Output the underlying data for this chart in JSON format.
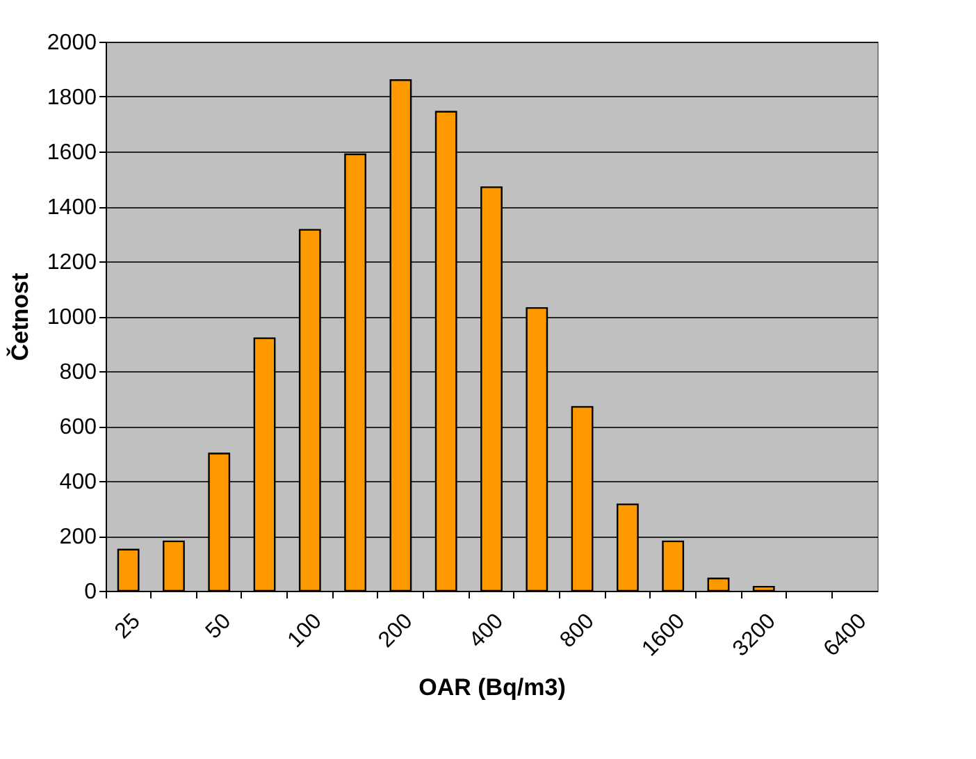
{
  "chart_data": {
    "type": "bar",
    "xlabel": "OAR (Bq/m3)",
    "ylabel": "Četnost",
    "categories": [
      "25",
      null,
      "50",
      null,
      "100",
      null,
      "200",
      null,
      "400",
      null,
      "800",
      null,
      "1600",
      null,
      "3200",
      null,
      "6400"
    ],
    "values": [
      150,
      180,
      500,
      920,
      1315,
      1590,
      1860,
      1745,
      1470,
      1030,
      670,
      315,
      180,
      45,
      15,
      null,
      null
    ],
    "color": "#ff9900",
    "ylim": [
      0,
      2000
    ],
    "yticks": [
      0,
      200,
      400,
      600,
      800,
      1000,
      1200,
      1400,
      1600,
      1800,
      2000
    ],
    "grid": "y"
  }
}
